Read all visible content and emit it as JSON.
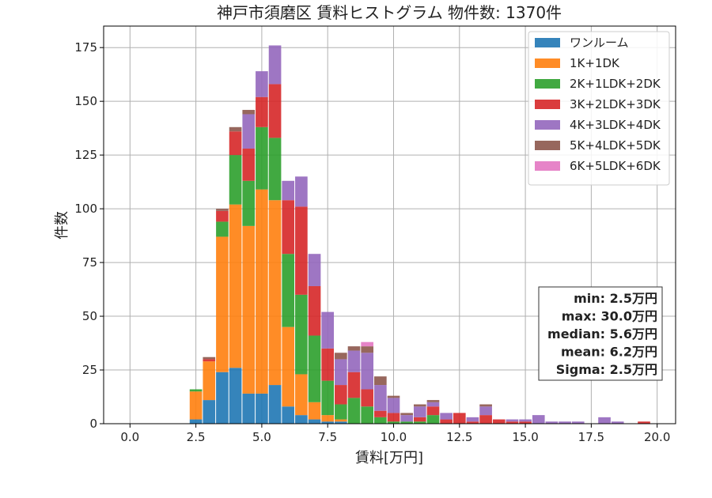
{
  "chart_data": {
    "type": "bar",
    "stacked": true,
    "title": "神戸市須磨区 賃料ヒストグラム 物件数: 1370件",
    "xlabel": "賃料[万円]",
    "ylabel": "件数",
    "xlim": [
      -1.0,
      20.7
    ],
    "ylim": [
      0,
      185
    ],
    "bin_width": 0.5,
    "grid": true,
    "x_ticks": [
      "0.0",
      "2.5",
      "5.0",
      "7.5",
      "10.0",
      "12.5",
      "15.0",
      "17.5",
      "20.0"
    ],
    "x_tick_values": [
      0,
      2.5,
      5,
      7.5,
      10,
      12.5,
      15,
      17.5,
      20
    ],
    "y_ticks": [
      "0",
      "25",
      "50",
      "75",
      "100",
      "125",
      "150",
      "175"
    ],
    "y_tick_values": [
      0,
      25,
      50,
      75,
      100,
      125,
      150,
      175
    ],
    "legend_position": "top-right",
    "bins": [
      2.5,
      3.0,
      3.5,
      4.0,
      4.5,
      5.0,
      5.5,
      6.0,
      6.5,
      7.0,
      7.5,
      8.0,
      8.5,
      9.0,
      9.5,
      10.0,
      10.5,
      11.0,
      11.5,
      12.0,
      12.5,
      13.0,
      13.5,
      14.0,
      14.5,
      15.0,
      15.5,
      16.0,
      16.5,
      17.0,
      17.5,
      18.0,
      18.5,
      19.0,
      19.5,
      20.0
    ],
    "series": [
      {
        "name": "ワンルーム",
        "color": "#1f77b4",
        "values": [
          2,
          11,
          24,
          26,
          14,
          14,
          18,
          8,
          4,
          2,
          1,
          1,
          0,
          0,
          0,
          0,
          0,
          0,
          0,
          0,
          0,
          0,
          0,
          0,
          0,
          0,
          0,
          0,
          0,
          0,
          0,
          0,
          0,
          0,
          0,
          0
        ]
      },
      {
        "name": "1K+1DK",
        "color": "#ff7f0e",
        "values": [
          13,
          18,
          63,
          76,
          78,
          95,
          86,
          37,
          19,
          8,
          3,
          1,
          0,
          0,
          0,
          0,
          0,
          0,
          0,
          0,
          0,
          0,
          0,
          0,
          0,
          0,
          0,
          0,
          0,
          0,
          0,
          0,
          0,
          0,
          0,
          0
        ]
      },
      {
        "name": "2K+1LDK+2DK",
        "color": "#2ca02c",
        "values": [
          1,
          0,
          7,
          23,
          21,
          29,
          29,
          34,
          37,
          31,
          16,
          7,
          12,
          8,
          3,
          1,
          1,
          1,
          4,
          0,
          0,
          0,
          0,
          0,
          0,
          0,
          0,
          0,
          0,
          0,
          0,
          0,
          0,
          0,
          0,
          0
        ]
      },
      {
        "name": "3K+2LDK+3DK",
        "color": "#d62728",
        "values": [
          0,
          1,
          5,
          11,
          15,
          14,
          25,
          25,
          41,
          23,
          15,
          9,
          12,
          8,
          3,
          4,
          0,
          2,
          4,
          2,
          5,
          1,
          4,
          2,
          1,
          1,
          0,
          0,
          0,
          0,
          0,
          0,
          0,
          0,
          1,
          0
        ]
      },
      {
        "name": "4K+3LDK+4DK",
        "color": "#9467bd",
        "values": [
          0,
          0,
          0,
          0,
          16,
          12,
          18,
          9,
          14,
          15,
          17,
          12,
          10,
          17,
          12,
          7,
          3,
          5,
          2,
          3,
          0,
          2,
          4,
          0,
          1,
          1,
          4,
          1,
          1,
          1,
          0,
          3,
          1,
          0,
          0,
          0
        ]
      },
      {
        "name": "5K+4LDK+5DK",
        "color": "#8c564b",
        "values": [
          0,
          1,
          1,
          2,
          2,
          0,
          0,
          0,
          0,
          0,
          0,
          3,
          2,
          3,
          4,
          1,
          1,
          1,
          1,
          0,
          0,
          0,
          1,
          0,
          0,
          0,
          0,
          0,
          0,
          0,
          0,
          0,
          0,
          0,
          0,
          0
        ]
      },
      {
        "name": "6K+5LDK+6DK",
        "color": "#e377c2",
        "values": [
          0,
          0,
          0,
          0,
          0,
          0,
          0,
          0,
          0,
          0,
          0,
          0,
          0,
          2,
          0,
          0,
          0,
          0,
          0,
          0,
          0,
          0,
          0,
          0,
          0,
          0,
          0,
          0,
          0,
          0,
          0,
          0,
          0,
          0,
          0,
          0
        ]
      }
    ],
    "stats": [
      "min: 2.5万円",
      "max: 30.0万円",
      "median: 5.6万円",
      "mean: 6.2万円",
      "Sigma: 2.5万円"
    ]
  }
}
